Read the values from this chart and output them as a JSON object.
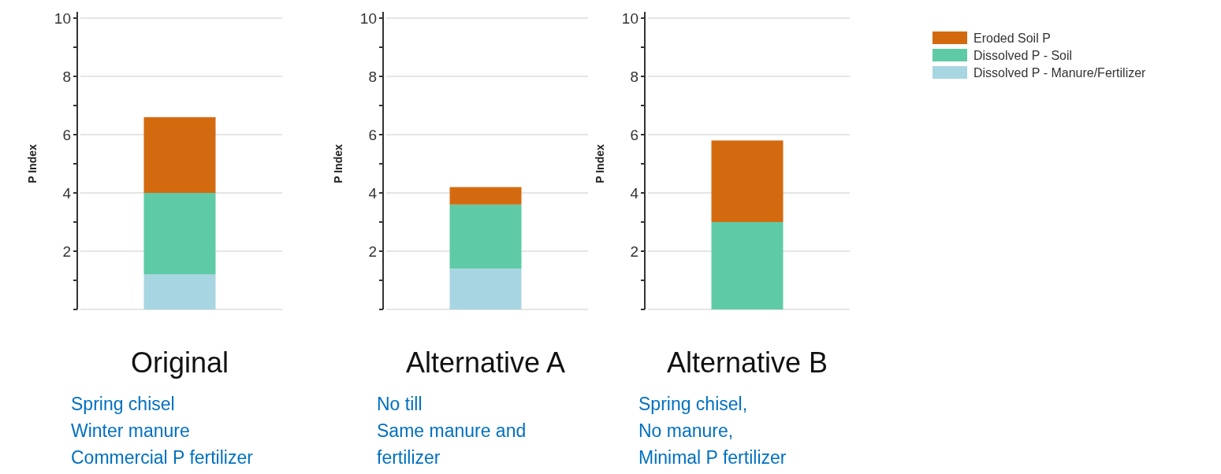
{
  "chart_data": [
    {
      "type": "bar",
      "stacked": true,
      "categories": [
        null
      ],
      "xlabel": "Original",
      "ylabel": "P Index",
      "ylim": [
        0,
        10
      ],
      "yticks": [
        {
          "value": 0,
          "label": null
        },
        {
          "value": 1,
          "label": null
        },
        2,
        {
          "value": 3,
          "label": null
        },
        4,
        {
          "value": 5,
          "label": null
        },
        6,
        {
          "value": 7,
          "label": null
        },
        8,
        {
          "value": 9,
          "label": null
        },
        10
      ],
      "grid": "y",
      "legend": false,
      "series": [
        {
          "color": "#a8d5e2",
          "values": [
            1.2
          ]
        },
        {
          "color": "#5ecba6",
          "values": [
            2.8
          ]
        },
        {
          "color": "#d46a0f",
          "values": [
            2.6
          ]
        }
      ],
      "annotations": [
        "Spring chisel",
        "Winter manure",
        "Commercial P fertilizer"
      ]
    },
    {
      "type": "bar",
      "stacked": true,
      "categories": [
        null
      ],
      "xlabel": "Alternative A",
      "ylabel": "P Index",
      "ylim": [
        0,
        10
      ],
      "yticks": [
        {
          "value": 0,
          "label": null
        },
        {
          "value": 1,
          "label": null
        },
        2,
        {
          "value": 3,
          "label": null
        },
        4,
        {
          "value": 5,
          "label": null
        },
        6,
        {
          "value": 7,
          "label": null
        },
        8,
        {
          "value": 9,
          "label": null
        },
        10
      ],
      "grid": "y",
      "legend": false,
      "series": [
        {
          "color": "#a8d5e2",
          "values": [
            1.4
          ]
        },
        {
          "color": "#5ecba6",
          "values": [
            2.2
          ]
        },
        {
          "color": "#d46a0f",
          "values": [
            0.6
          ]
        }
      ],
      "annotations": [
        "No till",
        "Same manure and",
        "fertilizer"
      ]
    },
    {
      "type": "bar",
      "stacked": true,
      "categories": [
        null
      ],
      "xlabel": "Alternative B",
      "ylabel": "P Index",
      "ylim": [
        0,
        10
      ],
      "yticks": [
        {
          "value": 0,
          "label": null
        },
        {
          "value": 1,
          "label": null
        },
        2,
        {
          "value": 3,
          "label": null
        },
        4,
        {
          "value": 5,
          "label": null
        },
        6,
        {
          "value": 7,
          "label": null
        },
        8,
        {
          "value": 9,
          "label": null
        },
        10
      ],
      "grid": "y",
      "legend": "right",
      "series": [
        {
          "name": "Dissolved P - Manure/Fertilizer",
          "color": "#a8d5e2",
          "values": [
            0
          ]
        },
        {
          "name": "Dissolved P - Soil",
          "color": "#5ecba6",
          "values": [
            3.0
          ]
        },
        {
          "name": "Eroded Soil P",
          "color": "#d46a0f",
          "values": [
            2.8
          ]
        }
      ],
      "annotations": [
        "Spring chisel,",
        "No manure,",
        "Minimal P fertilizer"
      ]
    }
  ]
}
